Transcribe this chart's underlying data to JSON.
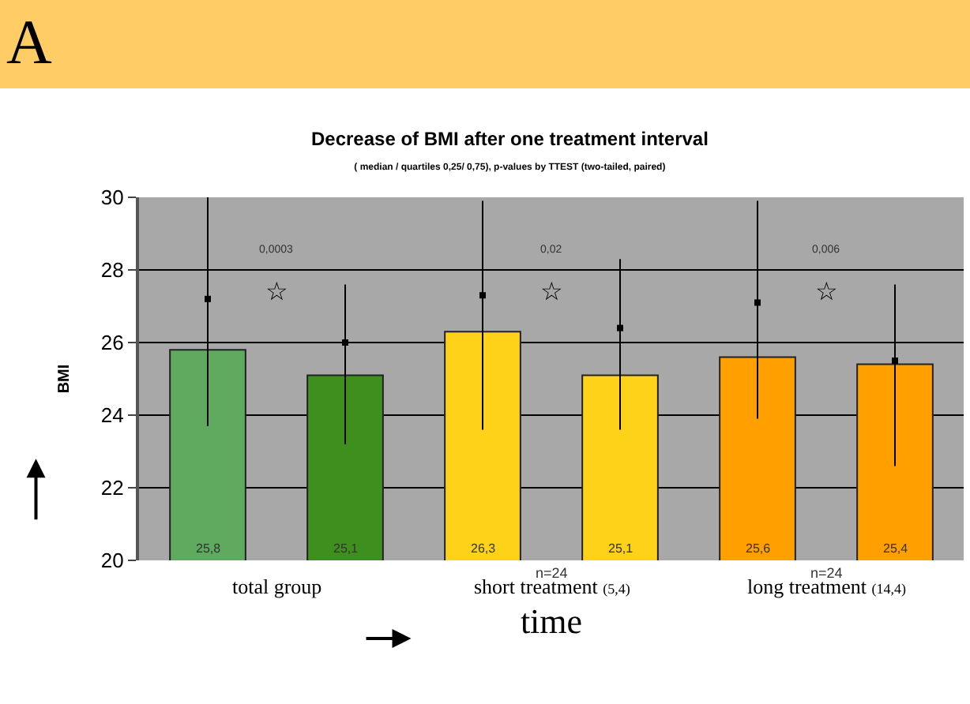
{
  "chart_data": {
    "type": "bar",
    "title": "Decrease of BMI after one treatment interval",
    "subtitle": "( median / quartiles 0,25/ 0,75), p-values by TTEST (two-tailed, paired)",
    "ylabel": "BMI",
    "xlabel": "time",
    "categories": [
      null,
      null,
      null,
      null,
      null,
      null
    ],
    "series": [
      {
        "colors": [
          "#5faa5f",
          "#3f8f1f",
          "#ffd21a",
          "#ffd21a",
          "#ffa000",
          "#ffa000"
        ],
        "values": [
          25.8,
          25.1,
          26.3,
          25.1,
          25.6,
          25.4
        ],
        "errors": [
          [
            23.7,
            30.0
          ],
          [
            23.2,
            27.6
          ],
          [
            23.6,
            29.9
          ],
          [
            23.6,
            28.3
          ],
          [
            23.9,
            29.9
          ],
          [
            22.6,
            27.6
          ]
        ],
        "value_labels": [
          "25,8",
          "25,1",
          "26,3",
          "25,1",
          "25,6",
          "25,4"
        ]
      },
      {
        "type": "scatter",
        "marker": "square",
        "color": "#000000",
        "values": [
          27.2,
          26.0,
          27.3,
          26.4,
          27.1,
          25.5
        ]
      }
    ],
    "ylim": [
      20,
      30
    ],
    "yticks": [
      20,
      22,
      24,
      26,
      28,
      30
    ],
    "grid": "y",
    "legend": false,
    "annotations": [
      "A",
      "total group",
      "short treatment (5,4)",
      "long treatment (14,4)",
      "0,0003",
      "☆",
      "0,02",
      "☆",
      "0,006",
      "☆",
      "n=24",
      "n=24"
    ]
  }
}
